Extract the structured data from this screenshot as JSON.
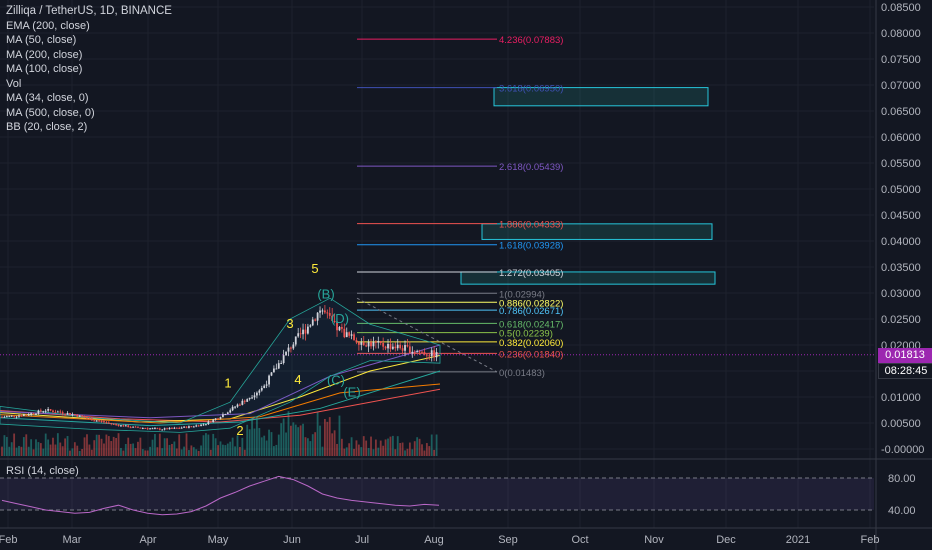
{
  "legend": {
    "title": "Zilliqa / TetherUS, 1D, BINANCE",
    "indicators": [
      "EMA (200, close)",
      "MA (50, close)",
      "MA (200, close)",
      "MA (100, close)",
      "Vol",
      "MA (34, close, 0)",
      "MA (500, close, 0)",
      "BB (20, close, 2)"
    ]
  },
  "rsi": {
    "label": "RSI (14, close)",
    "levels": [
      "80.00",
      "40.00"
    ]
  },
  "price_axis": [
    "0.08500",
    "0.08000",
    "0.07500",
    "0.07000",
    "0.06500",
    "0.06000",
    "0.05500",
    "0.05000",
    "0.04500",
    "0.04000",
    "0.03500",
    "0.03000",
    "0.02500",
    "0.02000",
    "0.01500",
    "0.01000",
    "0.00500",
    "-0.00000"
  ],
  "time_axis": [
    "Feb",
    "Mar",
    "Apr",
    "May",
    "Jun",
    "Jul",
    "Aug",
    "Sep",
    "Oct",
    "Nov",
    "Dec",
    "2021",
    "Feb"
  ],
  "current_price": "0.01813",
  "countdown": "08:28:45",
  "colors": {
    "bg": "#131722",
    "up": "#26a69a",
    "down": "#ef5350",
    "accent": "#9c27b0",
    "yellow": "#ffeb3b"
  },
  "chart_data": {
    "type": "candlestick",
    "ylim": [
      0,
      0.085
    ],
    "fib_levels": [
      {
        "ratio": "0",
        "value": 0.01483,
        "label": "0(0.01483)",
        "color": "#787b86"
      },
      {
        "ratio": "0.236",
        "value": 0.0184,
        "label": "0.236(0.01840)",
        "color": "#ef5350"
      },
      {
        "ratio": "0.382",
        "value": 0.0206,
        "label": "0.382(0.02060)",
        "color": "#ffeb3b"
      },
      {
        "ratio": "0.5",
        "value": 0.02239,
        "label": "0.5(0.02239)",
        "color": "#8bc34a"
      },
      {
        "ratio": "0.618",
        "value": 0.02417,
        "label": "0.618(0.02417)",
        "color": "#66bb6a"
      },
      {
        "ratio": "0.786",
        "value": 0.02671,
        "label": "0.786(0.02671)",
        "color": "#4fc3f7"
      },
      {
        "ratio": "0.886",
        "value": 0.02822,
        "label": "0.886(0.02822)",
        "color": "#ffff66"
      },
      {
        "ratio": "1",
        "value": 0.02994,
        "label": "1(0.02994)",
        "color": "#787b86"
      },
      {
        "ratio": "1.272",
        "value": 0.03405,
        "label": "1.272(0.03405)",
        "color": "#d1d4dc"
      },
      {
        "ratio": "1.618",
        "value": 0.03928,
        "label": "1.618(0.03928)",
        "color": "#2196f3"
      },
      {
        "ratio": "1.886",
        "value": 0.04333,
        "label": "1.886(0.04333)",
        "color": "#ef5350"
      },
      {
        "ratio": "2.618",
        "value": 0.05439,
        "label": "2.618(0.05439)",
        "color": "#7e57c2"
      },
      {
        "ratio": "3.618",
        "value": 0.0695,
        "label": "3.618(0.06950)",
        "color": "#3f51b5"
      },
      {
        "ratio": "4.236",
        "value": 0.07883,
        "label": "4.236(0.07883)",
        "color": "#e91e63"
      }
    ],
    "target_zones": [
      {
        "top": 0.0695,
        "bottom": 0.066
      },
      {
        "top": 0.0433,
        "bottom": 0.0403
      },
      {
        "top": 0.03405,
        "bottom": 0.0317
      }
    ],
    "wave_labels": [
      {
        "text": "1",
        "price": 0.0118,
        "color": "#ffeb3b"
      },
      {
        "text": "2",
        "price": 0.0027,
        "color": "#ffeb3b"
      },
      {
        "text": "3",
        "price": 0.0233,
        "color": "#ffeb3b"
      },
      {
        "text": "4",
        "price": 0.0125,
        "color": "#ffeb3b"
      },
      {
        "text": "5",
        "price": 0.0338,
        "color": "#ffeb3b"
      },
      {
        "text": "(B)",
        "price": 0.0289,
        "color": "#26a69a"
      },
      {
        "text": "(D)",
        "price": 0.0242,
        "color": "#26a69a"
      },
      {
        "text": "(C)",
        "price": 0.0124,
        "color": "#26a69a"
      },
      {
        "text": "(E)",
        "price": 0.0101,
        "color": "#26a69a"
      }
    ],
    "close_series": [
      0.0062,
      0.0064,
      0.0068,
      0.0075,
      0.0071,
      0.0066,
      0.0058,
      0.0052,
      0.0046,
      0.0042,
      0.004,
      0.0038,
      0.004,
      0.0043,
      0.0048,
      0.0062,
      0.008,
      0.0098,
      0.0118,
      0.016,
      0.02,
      0.0232,
      0.027,
      0.0235,
      0.0215,
      0.0205,
      0.02,
      0.0198,
      0.0192,
      0.0186,
      0.0181
    ],
    "rsi_series": [
      52,
      48,
      44,
      40,
      38,
      36,
      37,
      42,
      46,
      40,
      36,
      34,
      35,
      38,
      45,
      55,
      62,
      70,
      76,
      82,
      78,
      70,
      60,
      55,
      52,
      50,
      48,
      46,
      45,
      47,
      46
    ]
  }
}
